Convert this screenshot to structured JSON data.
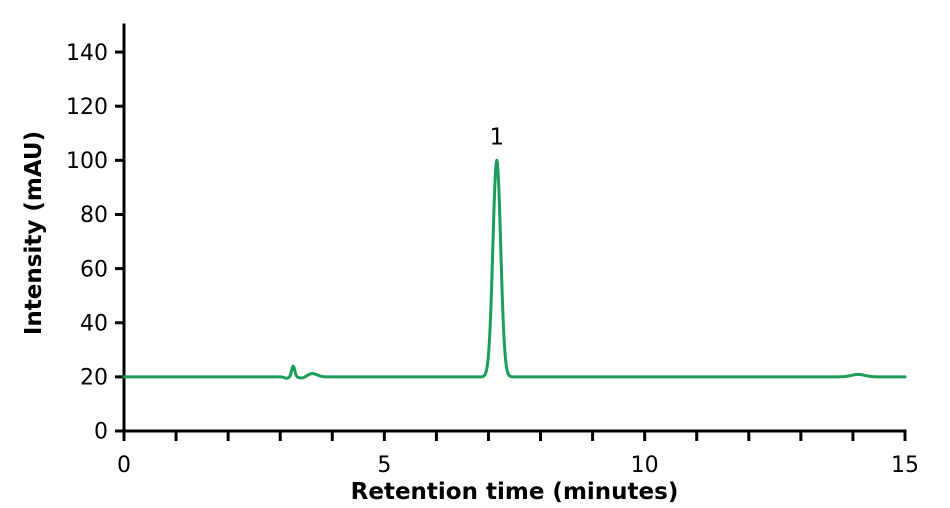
{
  "figure": {
    "background_color": "#ffffff",
    "text_color": "#000000"
  },
  "chart_data": {
    "type": "line",
    "title": "",
    "xlabel": "Retention time (minutes)",
    "ylabel": "Intensity (mAU)",
    "xlim": [
      0,
      15
    ],
    "ylim": [
      0,
      150
    ],
    "x_minor_tick_step": 1,
    "x_labeled_ticks": [
      0,
      5,
      10,
      15
    ],
    "y_ticks": [
      0,
      20,
      40,
      60,
      80,
      100,
      120,
      140
    ],
    "grid": "off",
    "legend": "none",
    "baseline_mAU": 20,
    "line_color": "#1c9e5a",
    "axis_color": "#000000",
    "peaks": [
      {
        "retention_time": 3.12,
        "height_above_baseline": -0.5,
        "sigma_min": 0.04,
        "label": ""
      },
      {
        "retention_time": 3.25,
        "height_above_baseline": 4.0,
        "sigma_min": 0.03,
        "label": ""
      },
      {
        "retention_time": 3.42,
        "height_above_baseline": -0.5,
        "sigma_min": 0.06,
        "label": ""
      },
      {
        "retention_time": 3.62,
        "height_above_baseline": 1.2,
        "sigma_min": 0.09,
        "label": ""
      },
      {
        "retention_time": 7.16,
        "height_above_baseline": 80.0,
        "sigma_min": 0.075,
        "label": "1",
        "apex_mAU": 100
      },
      {
        "retention_time": 14.1,
        "height_above_baseline": 0.9,
        "sigma_min": 0.13,
        "label": ""
      }
    ]
  }
}
